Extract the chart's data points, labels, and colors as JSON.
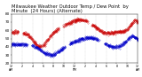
{
  "title": "Milwaukee Weather Outdoor Temp / Dew Point  by Minute  (24 Hours) (Alternate)",
  "title_fontsize": 3.8,
  "background_color": "#ffffff",
  "temp_color": "#cc0000",
  "dew_color": "#0000cc",
  "grid_color": "#999999",
  "ylim": [
    20,
    80
  ],
  "yticks": [
    20,
    30,
    40,
    50,
    60,
    70,
    80
  ],
  "ytick_fontsize": 3.0,
  "xtick_fontsize": 2.3,
  "num_points": 1440,
  "marker_size": 0.4,
  "figwidth": 1.6,
  "figheight": 0.87,
  "dpi": 100
}
